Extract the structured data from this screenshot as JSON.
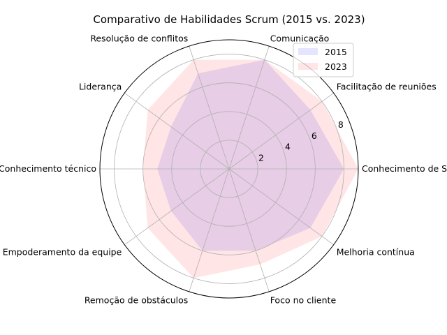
{
  "chart_data": {
    "type": "radar",
    "title": "Comparativo de Habilidades Scrum (2015 vs. 2023)",
    "categories": [
      "Conhecimento de Scrum",
      "Facilitação de reuniões",
      "Comunicação",
      "Resolução de conflitos",
      "Liderança",
      "Conhecimento técnico",
      "Empoderamento da equipe",
      "Remoção de obstáculos",
      "Foco no cliente",
      "Melhoria contínua"
    ],
    "radial_ticks": [
      2,
      4,
      6,
      8
    ],
    "rlim": [
      0,
      9
    ],
    "grid": true,
    "legend_position": "top-right",
    "series": [
      {
        "name": "2015",
        "values": [
          8,
          7,
          8,
          7,
          5,
          5,
          5,
          6,
          6,
          7
        ],
        "color": "#0000ff",
        "alpha": 0.1
      },
      {
        "name": "2023",
        "values": [
          9,
          8,
          8,
          8,
          7,
          6,
          7,
          8,
          7,
          8
        ],
        "color": "#ff0000",
        "alpha": 0.1
      }
    ]
  }
}
